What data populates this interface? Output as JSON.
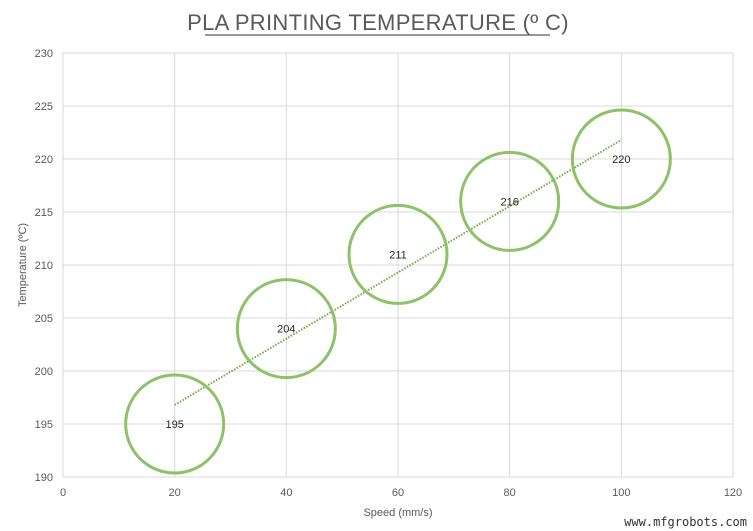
{
  "chart_data": {
    "type": "scatter",
    "title": "PLA PRINTING TEMPERATURE (º C)",
    "xlabel": "Speed (mm/s)",
    "ylabel": "Temperature (ºC)",
    "xlim": [
      0,
      120
    ],
    "ylim": [
      190,
      230
    ],
    "x_ticks": [
      0,
      20,
      40,
      60,
      80,
      100,
      120
    ],
    "y_ticks": [
      190,
      195,
      200,
      205,
      210,
      215,
      220,
      225,
      230
    ],
    "grid": true,
    "marker": "hollow circle",
    "trendline": "linear, dotted",
    "series": [
      {
        "x": [
          20,
          40,
          60,
          80,
          100
        ],
        "y": [
          195,
          204,
          211,
          216,
          220
        ]
      }
    ],
    "data_labels": [
      "195",
      "204",
      "211",
      "216",
      "220"
    ],
    "trendline_values": {
      "x": [
        20,
        100
      ],
      "y": [
        196.8,
        221.8
      ]
    },
    "colors": {
      "marker": "#8fc16b",
      "trendline": "#70ad47",
      "grid": "#d9d9d9",
      "text": "#595959"
    }
  },
  "watermark": "www.mfgrobots.com"
}
